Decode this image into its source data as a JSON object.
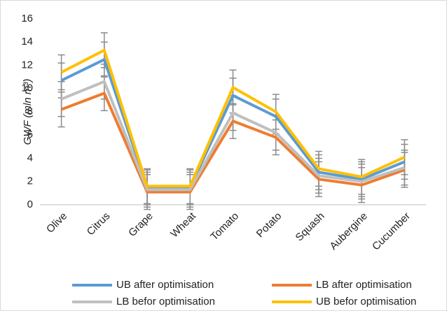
{
  "chart_data": {
    "type": "line",
    "y_label": "GWF (mln m³)",
    "categories": [
      "Olive",
      "Citrus",
      "Grape",
      "Wheat",
      "Tomato",
      "Potato",
      "Squash",
      "Aubergine",
      "Cucumber"
    ],
    "series": [
      {
        "name": "UB after optimisation",
        "color": "#5b9bd5",
        "values": [
          10.7,
          12.5,
          1.5,
          1.5,
          9.4,
          7.6,
          2.8,
          2.2,
          3.7
        ],
        "error": 1.5
      },
      {
        "name": "LB after optimisation",
        "color": "#ed7d31",
        "values": [
          8.2,
          9.6,
          1.1,
          1.1,
          7.2,
          5.8,
          2.2,
          1.7,
          3.0
        ],
        "error": 1.5
      },
      {
        "name": "LB befor optimisation",
        "color": "#bfbfbf",
        "values": [
          9.1,
          10.6,
          1.3,
          1.3,
          7.9,
          6.2,
          2.5,
          2.0,
          3.2
        ],
        "error": 1.5
      },
      {
        "name": "UB befor optimisation",
        "color": "#ffc000",
        "values": [
          11.4,
          13.3,
          1.6,
          1.6,
          10.1,
          8.0,
          3.1,
          2.4,
          4.1
        ],
        "error": 1.5
      }
    ],
    "ylim": [
      0,
      16
    ],
    "yticks": [
      0,
      2,
      4,
      6,
      8,
      10,
      12,
      14,
      16
    ],
    "error_color": "#8c8c8c",
    "grid": false,
    "legend": "bottom"
  }
}
